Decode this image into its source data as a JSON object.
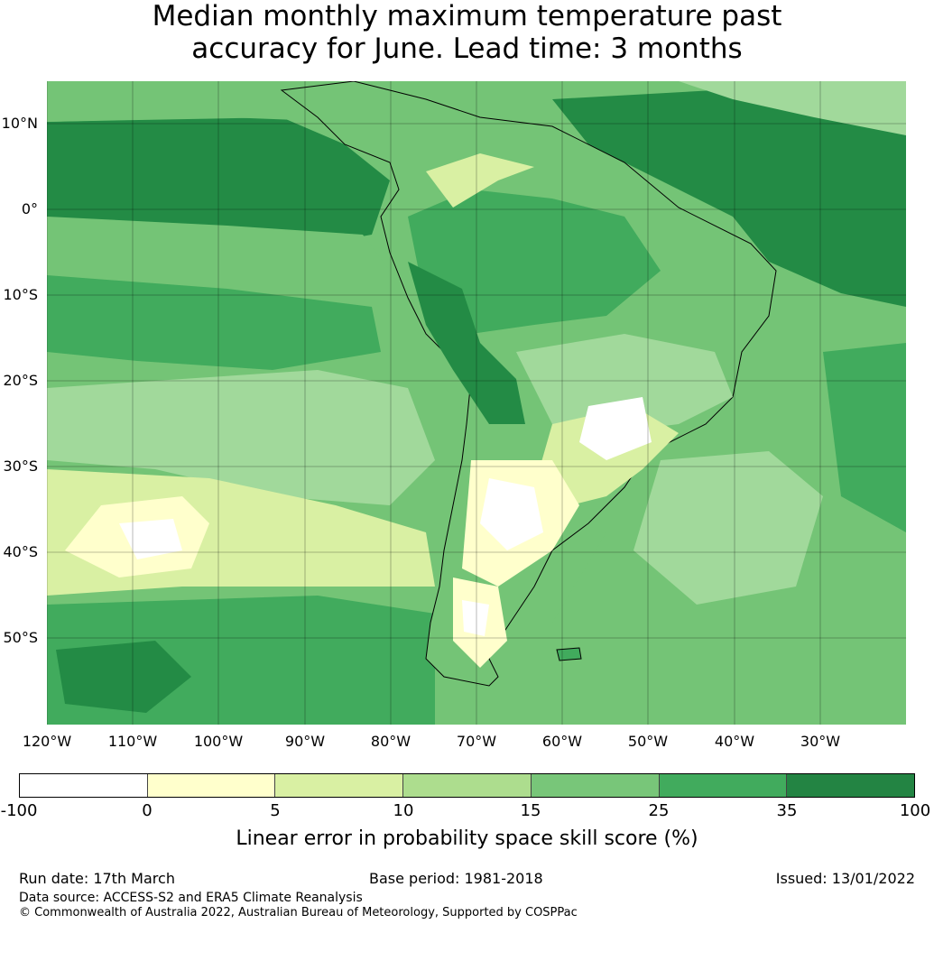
{
  "title_line1": "Median monthly maximum temperature past",
  "title_line2": "accuracy for June. Lead time: 3 months",
  "map": {
    "lat_labels": [
      "10°N",
      "0°",
      "10°S",
      "20°S",
      "30°S",
      "40°S",
      "50°S"
    ],
    "lon_labels": [
      "120°W",
      "110°W",
      "100°W",
      "90°W",
      "80°W",
      "70°W",
      "60°W",
      "50°W",
      "40°W",
      "30°W"
    ],
    "ocean_colors": [
      "#238b45",
      "#41ab5d",
      "#74c476",
      "#a1d99b",
      "#d9f0a3"
    ],
    "land_colors": [
      "#ffffcc",
      "#d9f0a3",
      "#a1d99b",
      "#74c476",
      "#41ab5d",
      "#238b45"
    ]
  },
  "colorbar": {
    "colors": [
      "#ffffff",
      "#ffffcc",
      "#d9f0a3",
      "#addd8e",
      "#78c679",
      "#41ab5d",
      "#238443"
    ],
    "ticks": [
      "-100",
      "0",
      "5",
      "10",
      "15",
      "25",
      "35",
      "100"
    ],
    "label": "Linear error in probability space skill score (%)"
  },
  "footer": {
    "run_date": "Run date: 17th March",
    "base_period": "Base period: 1981-2018",
    "issued": "Issued: 13/01/2022",
    "source": "Data source: ACCESS-S2 and ERA5 Climate Reanalysis",
    "copyright": "© Commonwealth of Australia 2022, Australian Bureau of Meteorology, Supported by COSPPac"
  }
}
